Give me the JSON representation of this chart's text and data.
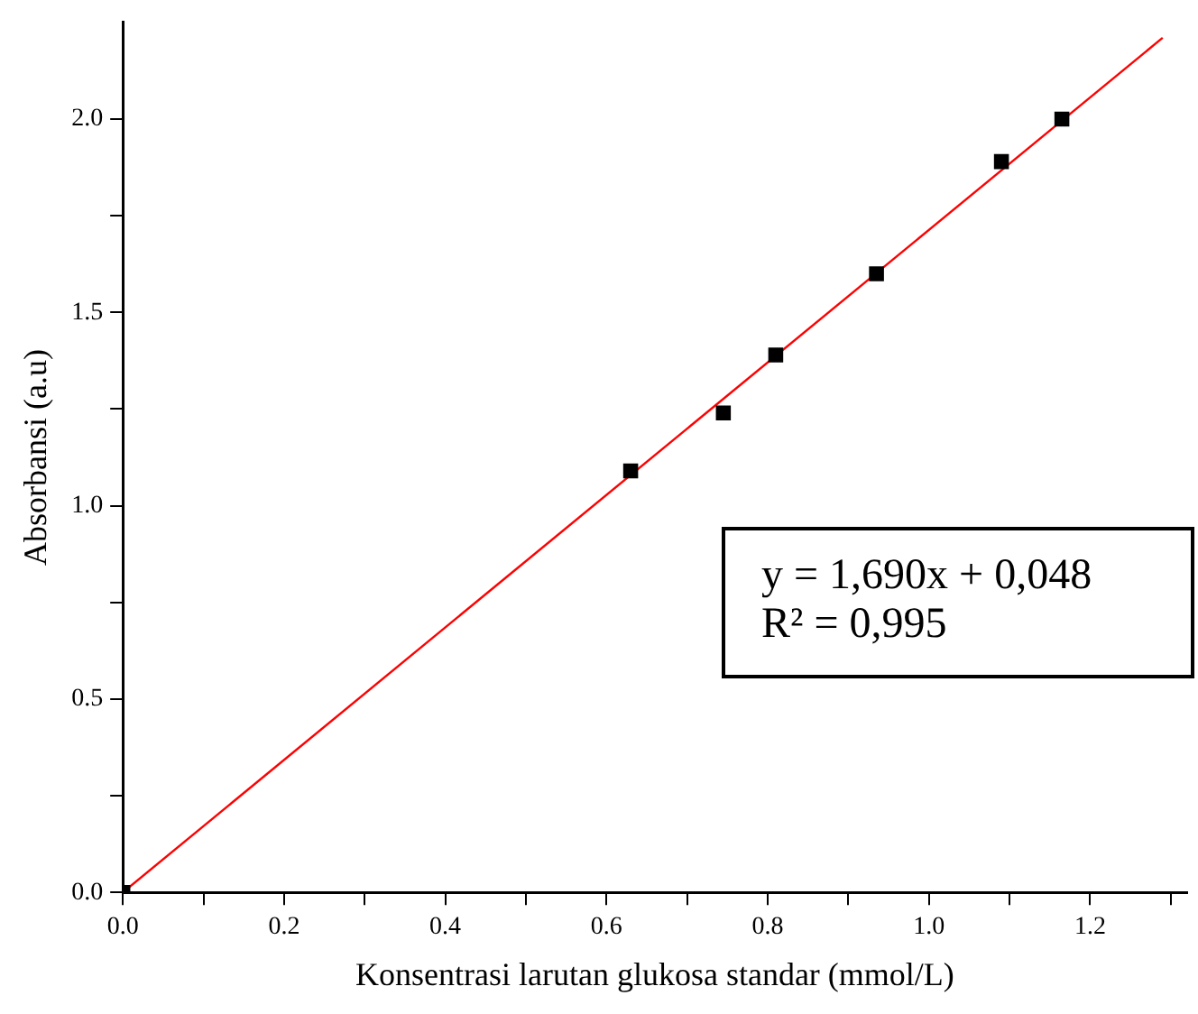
{
  "chart_data": {
    "type": "scatter",
    "xlabel": "Konsentrasi larutan glukosa standar (mmol/L)",
    "ylabel": "Absorbansi (a.u)",
    "series": [
      {
        "type": "scatter",
        "color": "#000000",
        "x": [
          0,
          0.63,
          0.745,
          0.81,
          0.935,
          1.09,
          1.165
        ],
        "values": [
          0,
          1.09,
          1.24,
          1.39,
          1.6,
          1.89,
          2.0
        ],
        "marker": "square"
      },
      {
        "type": "line",
        "color": "#ff0000",
        "x": [
          0,
          1.29
        ],
        "values": [
          0,
          2.21
        ],
        "marker": "none",
        "line_style": "solid"
      }
    ],
    "xlim": [
      0,
      1.32
    ],
    "ylim": [
      0,
      2.25
    ],
    "xticks": [
      {
        "value": 0,
        "label": "0.0"
      },
      {
        "value": 0.1,
        "label": null
      },
      0.2,
      {
        "value": 0.3,
        "label": null
      },
      0.4,
      {
        "value": 0.5,
        "label": null
      },
      0.6,
      {
        "value": 0.7,
        "label": null
      },
      0.8,
      {
        "value": 0.9,
        "label": null
      },
      {
        "value": 1,
        "label": "1.0"
      },
      {
        "value": 1.1,
        "label": null
      },
      1.2,
      {
        "value": 1.3,
        "label": null
      }
    ],
    "yticks": [
      {
        "value": 0,
        "label": "0.0"
      },
      {
        "value": 0.25,
        "label": null
      },
      0.5,
      {
        "value": 0.75,
        "label": null
      },
      {
        "value": 1,
        "label": "1.0"
      },
      {
        "value": 1.25,
        "label": null
      },
      1.5,
      {
        "value": 1.75,
        "label": null
      },
      {
        "value": 2,
        "label": "2.0"
      }
    ],
    "annotations": [
      "y = 1,690x + 0,048",
      "R² = 0,995"
    ],
    "grid": false,
    "legend": false
  }
}
